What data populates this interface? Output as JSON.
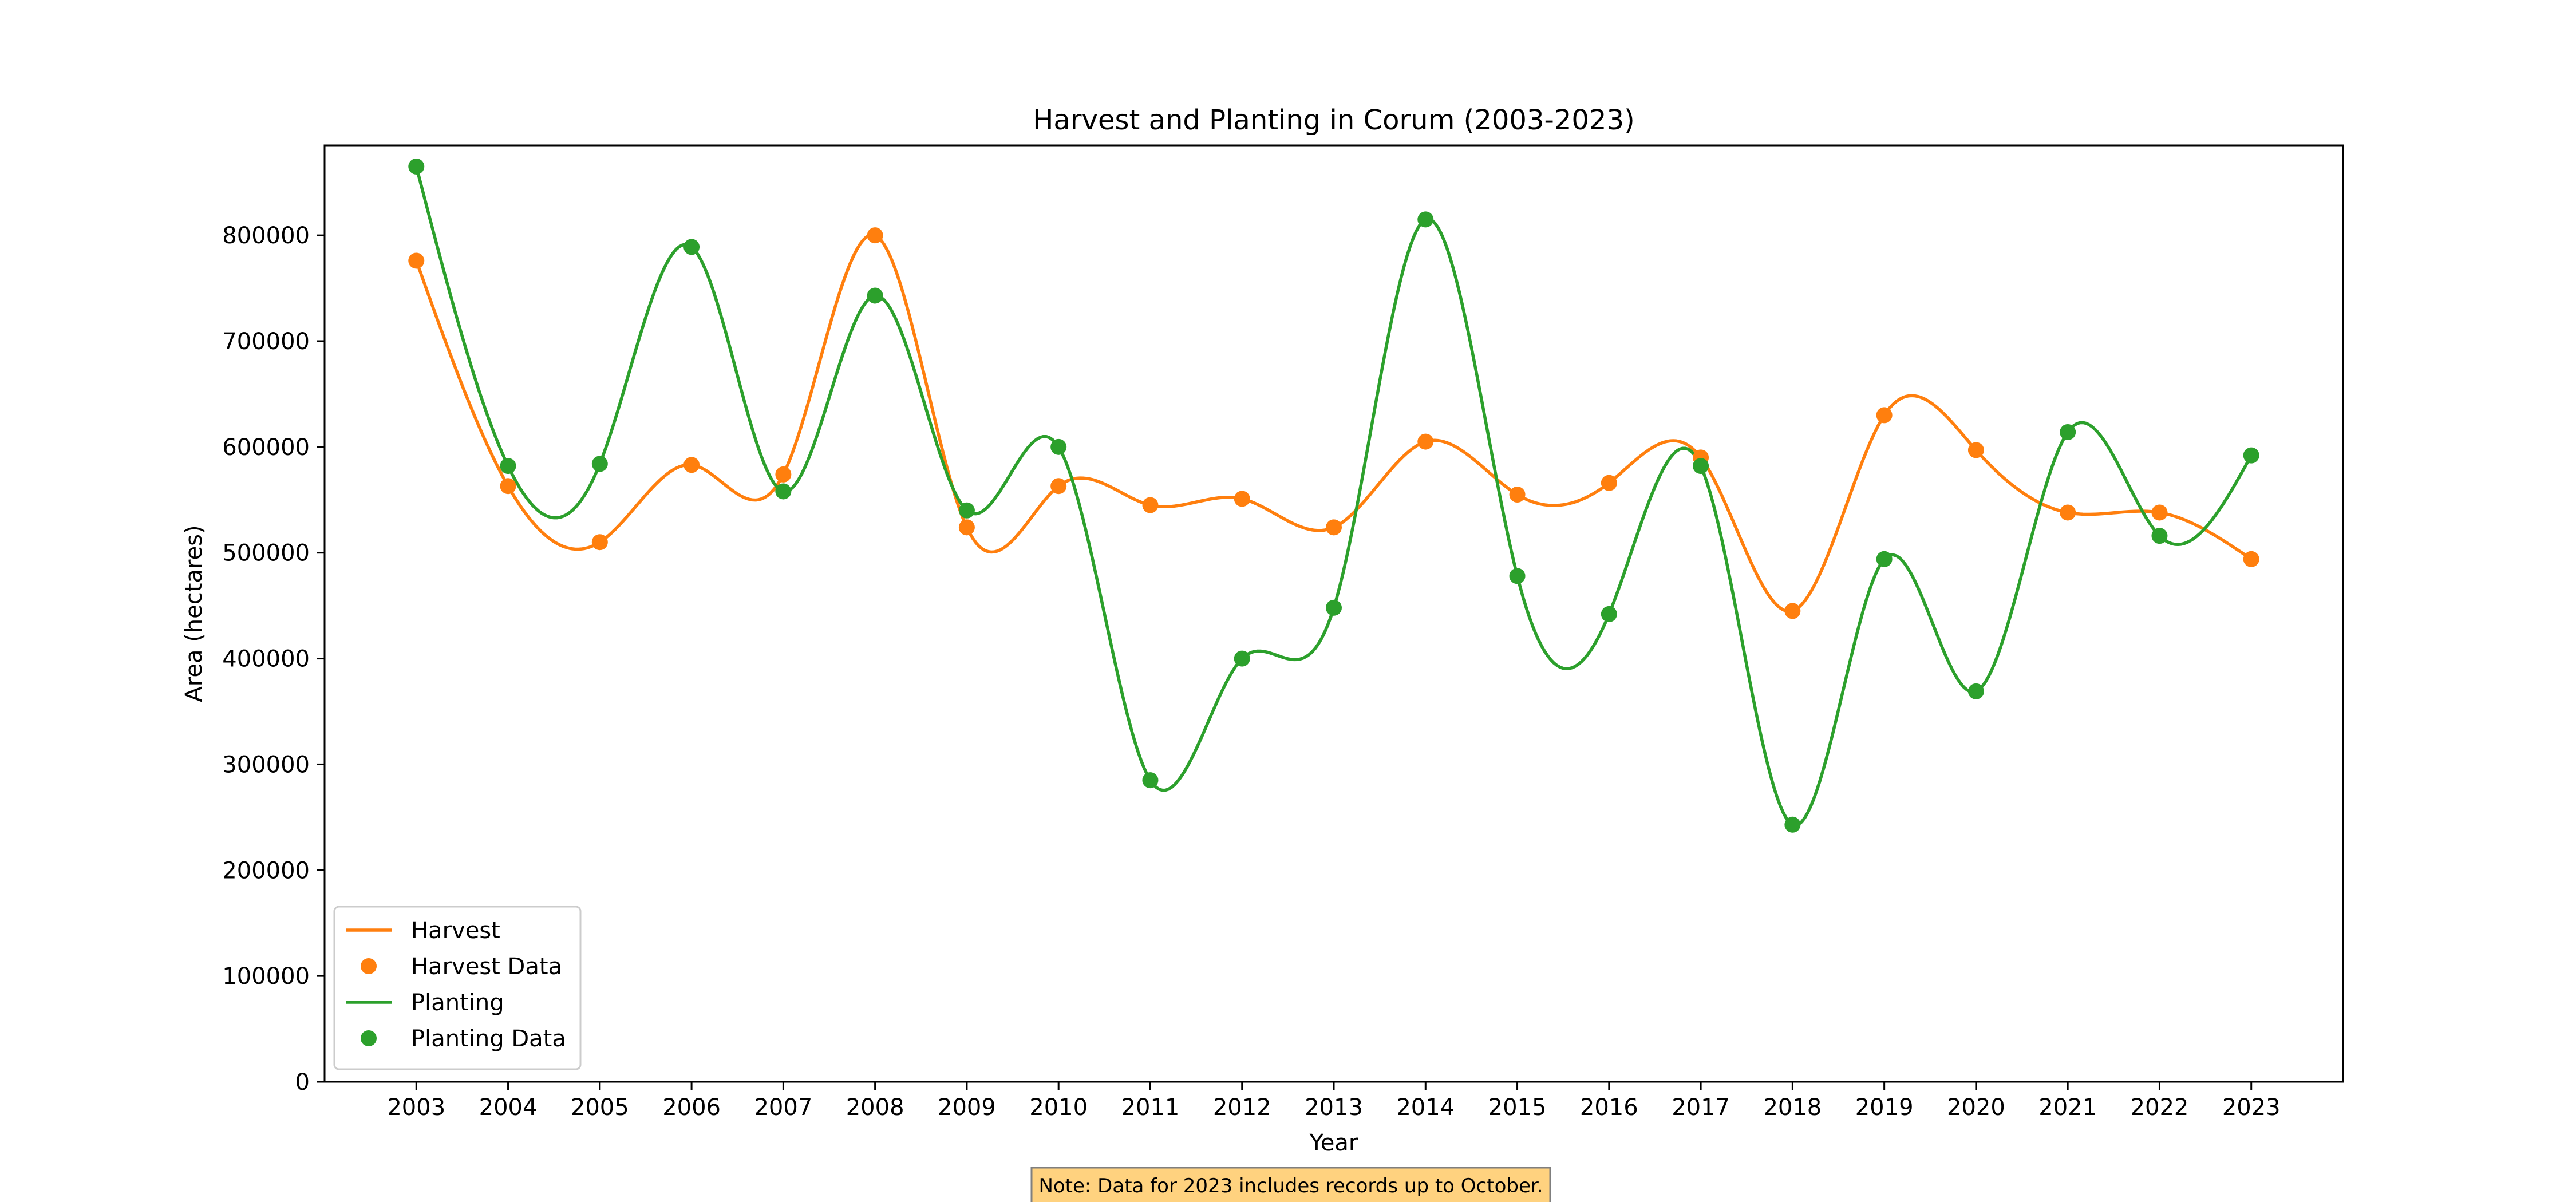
{
  "chart_data": {
    "type": "line",
    "title": "Harvest and Planting in Corum (2003-2023)",
    "xlabel": "Year",
    "ylabel": "Area (hectares)",
    "x": [
      2003,
      2004,
      2005,
      2006,
      2007,
      2008,
      2009,
      2010,
      2011,
      2012,
      2013,
      2014,
      2015,
      2016,
      2017,
      2018,
      2019,
      2020,
      2021,
      2022,
      2023
    ],
    "xlim": [
      2002,
      2024
    ],
    "ylim": [
      0,
      885000
    ],
    "yticks": [
      0,
      100000,
      200000,
      300000,
      400000,
      500000,
      600000,
      700000,
      800000
    ],
    "series": [
      {
        "name": "Harvest",
        "marker_name": "Harvest Data",
        "color": "#ff7f0e",
        "values": [
          776000,
          563000,
          510000,
          583000,
          574000,
          800000,
          524000,
          563000,
          545000,
          551000,
          524000,
          605000,
          555000,
          566000,
          590000,
          445000,
          630000,
          597000,
          538000,
          538000,
          494000
        ]
      },
      {
        "name": "Planting",
        "marker_name": "Planting Data",
        "color": "#2ca02c",
        "values": [
          865000,
          582000,
          584000,
          789000,
          558000,
          743000,
          540000,
          600000,
          285000,
          400000,
          448000,
          815000,
          478000,
          442000,
          582000,
          243000,
          494000,
          369000,
          614000,
          516000,
          592000
        ]
      }
    ],
    "grid": false,
    "legend_position": "lower-left",
    "note": "Note: Data for 2023 includes records up to October.",
    "note_color": "#ffd27f"
  }
}
